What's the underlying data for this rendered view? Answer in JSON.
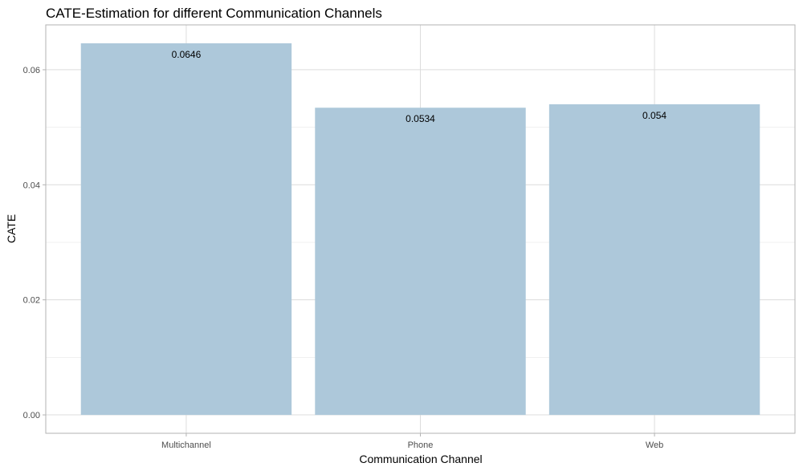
{
  "chart_data": {
    "type": "bar",
    "title": "CATE-Estimation for different Communication Channels",
    "xlabel": "Communication Channel",
    "ylabel": "CATE",
    "categories": [
      "Multichannel",
      "Phone",
      "Web"
    ],
    "values": [
      0.0646,
      0.0534,
      0.054
    ],
    "data_labels": [
      "0.0646",
      "0.0534",
      "0.054"
    ],
    "y_ticks": [
      0.0,
      0.02,
      0.04,
      0.06
    ],
    "y_tick_labels": [
      "0.00",
      "0.02",
      "0.04",
      "0.06"
    ],
    "ylim": [
      -0.0032,
      0.0678
    ],
    "bar_color": "#adc8da",
    "grid": true,
    "legend": "none"
  }
}
